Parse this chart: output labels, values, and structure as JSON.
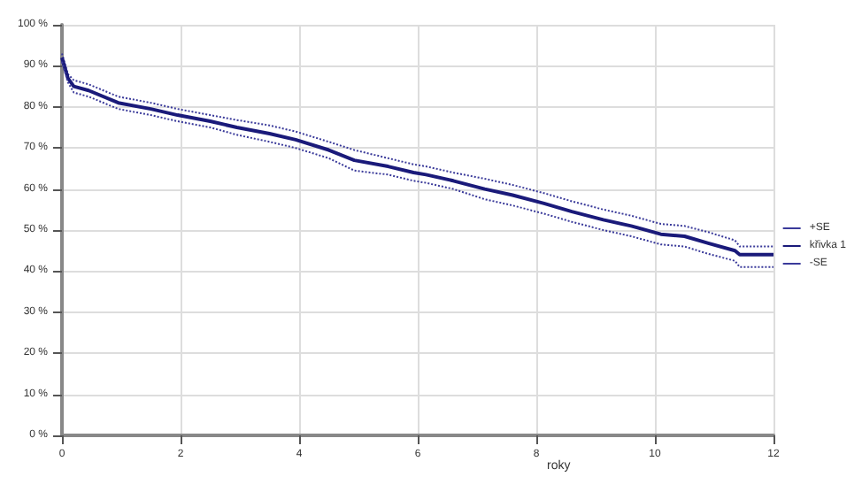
{
  "chart_data": {
    "type": "line",
    "xlabel": "roky",
    "x": [
      0,
      0.1,
      0.2,
      0.45,
      0.95,
      1.5,
      1.95,
      2.5,
      2.95,
      3.5,
      3.94,
      4.5,
      4.93,
      5.5,
      5.93,
      6.14,
      6.6,
      7.13,
      7.6,
      8.13,
      8.6,
      9.13,
      9.6,
      10.1,
      10.5,
      10.9,
      11.35,
      11.43,
      12
    ],
    "series": [
      {
        "name": "+SE",
        "color": "#3a3a9a",
        "line_style": "dotted",
        "values": [
          93,
          88,
          86.5,
          85.5,
          82.5,
          81,
          79.5,
          78,
          76.8,
          75.5,
          74,
          71.5,
          69.5,
          67.5,
          66,
          65.5,
          64,
          62.5,
          61,
          59,
          57,
          55,
          53.5,
          51.5,
          51,
          49.5,
          47.5,
          46,
          46
        ]
      },
      {
        "name": "křivka 1",
        "color": "#1a1a7a",
        "line_style": "solid",
        "values": [
          92,
          87,
          85,
          84,
          81,
          79.5,
          78,
          76.5,
          75,
          73.5,
          72,
          69.5,
          67,
          65.5,
          64,
          63.5,
          62,
          60,
          58.5,
          56.5,
          54.5,
          52.5,
          51,
          49,
          48.5,
          46.8,
          45,
          44,
          44
        ]
      },
      {
        "name": "-SE",
        "color": "#3a3a9a",
        "line_style": "dotted",
        "values": [
          91,
          86,
          83.5,
          82.5,
          79.5,
          78,
          76.5,
          75,
          73.2,
          71.5,
          70,
          67.5,
          64.5,
          63.5,
          62,
          61.5,
          60,
          57.5,
          56,
          54,
          52,
          50,
          48.5,
          46.5,
          46,
          44.2,
          42.5,
          41,
          41
        ]
      }
    ],
    "xlim": [
      0,
      12
    ],
    "xticks": [
      0,
      2,
      4,
      6,
      8,
      10,
      12
    ],
    "ylim": [
      0,
      100
    ],
    "yticks": [
      {
        "value": 0,
        "label": "0 %"
      },
      {
        "value": 10,
        "label": "10 %"
      },
      {
        "value": 20,
        "label": "20 %"
      },
      {
        "value": 30,
        "label": "30 %"
      },
      {
        "value": 40,
        "label": "40 %"
      },
      {
        "value": 50,
        "label": "50 %"
      },
      {
        "value": 60,
        "label": "60 %"
      },
      {
        "value": 70,
        "label": "70 %"
      },
      {
        "value": 80,
        "label": "80 %"
      },
      {
        "value": 90,
        "label": "90 %"
      },
      {
        "value": 100,
        "label": "100 %"
      }
    ],
    "grid": true,
    "legend": "right",
    "marker": "none"
  }
}
